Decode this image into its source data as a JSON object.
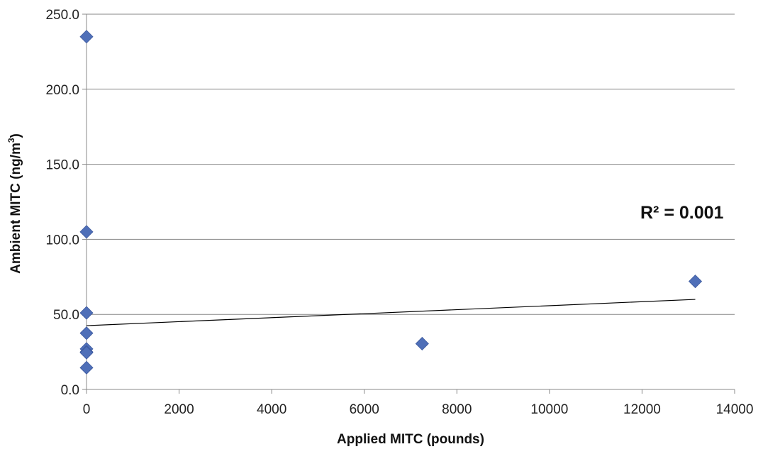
{
  "chart_data": {
    "type": "scatter",
    "title": "",
    "xlabel": "Applied MITC (pounds)",
    "ylabel_main": "Ambient MITC (ng/m",
    "ylabel_sup": "3",
    "ylabel_end": ")",
    "xlim": [
      0,
      14000
    ],
    "ylim": [
      0,
      250
    ],
    "x_ticks": [
      0,
      2000,
      4000,
      6000,
      8000,
      10000,
      12000,
      14000
    ],
    "x_tick_labels": [
      "0",
      "2000",
      "4000",
      "6000",
      "8000",
      "10000",
      "12000",
      "14000"
    ],
    "y_ticks": [
      0,
      50,
      100,
      150,
      200,
      250
    ],
    "y_tick_labels": [
      "0.0",
      "50.0",
      "100.0",
      "150.0",
      "200.0",
      "250.0"
    ],
    "grid": "horizontal",
    "legend": "none",
    "series": [
      {
        "points": [
          {
            "x": 0,
            "y": 235.0
          },
          {
            "x": 0,
            "y": 105.0
          },
          {
            "x": 0,
            "y": 51.0
          },
          {
            "x": 0,
            "y": 37.5
          },
          {
            "x": 0,
            "y": 27.0
          },
          {
            "x": 0,
            "y": 25.0
          },
          {
            "x": 0,
            "y": 24.5
          },
          {
            "x": 0,
            "y": 14.5
          },
          {
            "x": 7250,
            "y": 30.5
          },
          {
            "x": 13150,
            "y": 72.0
          }
        ],
        "marker": "diamond",
        "color": "#4F6FB8"
      }
    ],
    "trendline": {
      "type": "linear",
      "x": [
        0,
        13150
      ],
      "y": [
        42.5,
        60.0
      ],
      "color": "#000000"
    },
    "annotations": [
      {
        "text": "R² = 0.001"
      }
    ]
  }
}
